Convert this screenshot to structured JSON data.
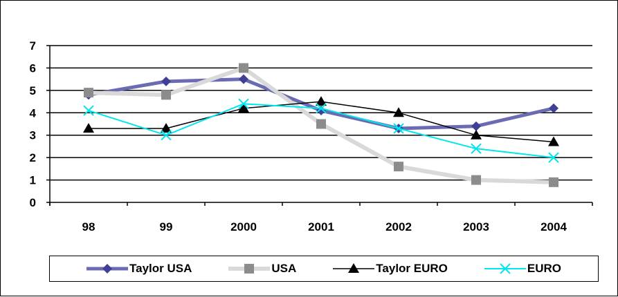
{
  "chart_data": {
    "type": "line",
    "categories": [
      "98",
      "99",
      "2000",
      "2001",
      "2002",
      "2003",
      "2004"
    ],
    "ylim": [
      0,
      7
    ],
    "yticks": [
      0,
      1,
      2,
      3,
      4,
      5,
      6,
      7
    ],
    "grid": {
      "horizontal": true,
      "vertical": false
    },
    "legend_position": "bottom",
    "series": [
      {
        "name": "Taylor USA",
        "values": [
          4.8,
          5.4,
          5.5,
          4.1,
          3.3,
          3.4,
          4.2
        ],
        "color": "#3f3f96",
        "line_color": "#6b6bb3",
        "marker": "diamond"
      },
      {
        "name": "USA",
        "values": [
          4.9,
          4.8,
          6.0,
          3.5,
          1.6,
          1.0,
          0.9
        ],
        "color": "#8c8c8c",
        "line_color": "#d9d9d9",
        "marker": "square"
      },
      {
        "name": "Taylor EURO",
        "values": [
          3.3,
          3.3,
          4.2,
          4.5,
          4.0,
          3.0,
          2.7
        ],
        "color": "#000000",
        "line_color": "#000000",
        "marker": "triangle"
      },
      {
        "name": "EURO",
        "values": [
          4.1,
          3.0,
          4.4,
          4.2,
          3.3,
          2.4,
          2.0
        ],
        "color": "#00e5ee",
        "line_color": "#00e5ee",
        "marker": "x"
      }
    ]
  }
}
